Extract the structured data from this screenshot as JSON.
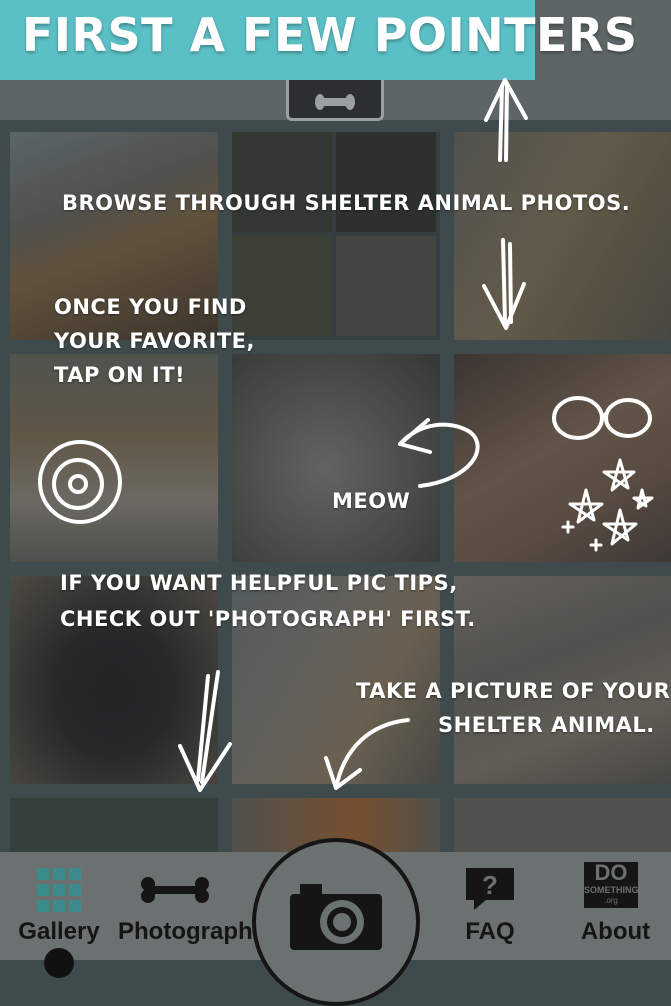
{
  "banner": {
    "title": "FIRST A FEW POINTERS"
  },
  "tips": {
    "browse": "BROWSE THROUGH SHELTER ANIMAL PHOTOS.",
    "favorite": [
      "ONCE YOU FIND",
      "YOUR FAVORITE,",
      "TAP ON IT!"
    ],
    "meow": "MEOW",
    "pic_tips": [
      "IF YOU WANT HELPFUL PIC TIPS,",
      "CHECK OUT 'PHOTOGRAPH' FIRST."
    ],
    "take_picture": [
      "TAKE A PICTURE OF YOUR",
      "SHELTER ANIMAL."
    ]
  },
  "tabs": [
    {
      "label": "Gallery",
      "icon": "grid-icon"
    },
    {
      "label": "Photograph",
      "icon": "bone-icon"
    },
    {
      "label": "",
      "icon": "camera-icon"
    },
    {
      "label": "FAQ",
      "icon": "question-icon"
    },
    {
      "label": "About",
      "icon": "dosomething-logo-icon"
    }
  ],
  "about_logo": {
    "line1": "DO",
    "line2": "SOMETHING",
    "line3": ".org"
  },
  "colors": {
    "banner": "#5bc0c6",
    "tabbar": "#6b7070",
    "gallery_icon": "#3b8c8c"
  }
}
